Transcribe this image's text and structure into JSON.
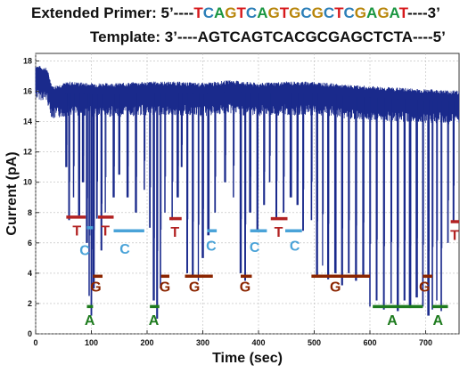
{
  "header": {
    "primer_label": "Extended Primer:",
    "primer_5": "5’----",
    "primer_3": "----3’",
    "primer_bases": [
      {
        "b": "T",
        "c": "#d7191c"
      },
      {
        "b": "C",
        "c": "#2c7fb8"
      },
      {
        "b": "A",
        "c": "#1a9641"
      },
      {
        "b": "G",
        "c": "#b8860b"
      },
      {
        "b": "T",
        "c": "#d7191c"
      },
      {
        "b": "C",
        "c": "#2c7fb8"
      },
      {
        "b": "A",
        "c": "#1a9641"
      },
      {
        "b": "G",
        "c": "#b8860b"
      },
      {
        "b": "T",
        "c": "#d7191c"
      },
      {
        "b": "G",
        "c": "#b8860b"
      },
      {
        "b": "C",
        "c": "#2c7fb8"
      },
      {
        "b": "G",
        "c": "#b8860b"
      },
      {
        "b": "C",
        "c": "#2c7fb8"
      },
      {
        "b": "T",
        "c": "#d7191c"
      },
      {
        "b": "C",
        "c": "#2c7fb8"
      },
      {
        "b": "G",
        "c": "#b8860b"
      },
      {
        "b": "A",
        "c": "#1a9641"
      },
      {
        "b": "G",
        "c": "#b8860b"
      },
      {
        "b": "A",
        "c": "#1a9641"
      },
      {
        "b": "T",
        "c": "#d7191c"
      }
    ],
    "template_text": "Template: 3’----AGTCAGTCACGCGAGCTCTA----5’"
  },
  "chart_data": {
    "type": "line",
    "xlabel": "Time (sec)",
    "ylabel": "Current (pA)",
    "xlim": [
      0,
      760
    ],
    "ylim": [
      0,
      18.5
    ],
    "xticks": [
      0,
      100,
      200,
      300,
      400,
      500,
      600,
      700
    ],
    "yticks": [
      0,
      2,
      4,
      6,
      8,
      10,
      12,
      14,
      16,
      18
    ],
    "grid": true,
    "trace_color": "#1a2a8c",
    "baseline": [
      [
        0,
        17.0
      ],
      [
        20,
        16.8
      ],
      [
        30,
        15.6
      ],
      [
        60,
        15.9
      ],
      [
        100,
        15.8
      ],
      [
        150,
        15.8
      ],
      [
        200,
        15.9
      ],
      [
        250,
        15.9
      ],
      [
        300,
        15.8
      ],
      [
        350,
        16.0
      ],
      [
        400,
        15.8
      ],
      [
        450,
        15.9
      ],
      [
        500,
        15.9
      ],
      [
        550,
        15.7
      ],
      [
        600,
        15.6
      ],
      [
        650,
        15.5
      ],
      [
        700,
        15.4
      ],
      [
        760,
        15.3
      ]
    ],
    "spikes": [
      {
        "x": 55,
        "y": 11
      },
      {
        "x": 60,
        "y": 7.5
      },
      {
        "x": 68,
        "y": 9
      },
      {
        "x": 78,
        "y": 7.8
      },
      {
        "x": 85,
        "y": 10
      },
      {
        "x": 92,
        "y": 6
      },
      {
        "x": 96,
        "y": 2.5
      },
      {
        "x": 100,
        "y": 1.2
      },
      {
        "x": 104,
        "y": 3
      },
      {
        "x": 110,
        "y": 7.6
      },
      {
        "x": 118,
        "y": 5.5
      },
      {
        "x": 125,
        "y": 8
      },
      {
        "x": 140,
        "y": 9
      },
      {
        "x": 150,
        "y": 10.5
      },
      {
        "x": 165,
        "y": 9
      },
      {
        "x": 180,
        "y": 8
      },
      {
        "x": 195,
        "y": 9.5
      },
      {
        "x": 205,
        "y": 7
      },
      {
        "x": 212,
        "y": 2.2
      },
      {
        "x": 218,
        "y": 1
      },
      {
        "x": 224,
        "y": 3
      },
      {
        "x": 232,
        "y": 8
      },
      {
        "x": 245,
        "y": 7.5
      },
      {
        "x": 255,
        "y": 9
      },
      {
        "x": 262,
        "y": 11
      },
      {
        "x": 272,
        "y": 4
      },
      {
        "x": 282,
        "y": 3.8
      },
      {
        "x": 292,
        "y": 3.5
      },
      {
        "x": 300,
        "y": 5
      },
      {
        "x": 310,
        "y": 6.5
      },
      {
        "x": 322,
        "y": 8
      },
      {
        "x": 340,
        "y": 10
      },
      {
        "x": 355,
        "y": 9
      },
      {
        "x": 368,
        "y": 4
      },
      {
        "x": 376,
        "y": 3.5
      },
      {
        "x": 385,
        "y": 8
      },
      {
        "x": 398,
        "y": 6.8
      },
      {
        "x": 410,
        "y": 8.5
      },
      {
        "x": 420,
        "y": 10
      },
      {
        "x": 432,
        "y": 7.6
      },
      {
        "x": 445,
        "y": 8
      },
      {
        "x": 458,
        "y": 9
      },
      {
        "x": 470,
        "y": 8.5
      },
      {
        "x": 480,
        "y": 6.8
      },
      {
        "x": 495,
        "y": 7.5
      },
      {
        "x": 505,
        "y": 3.8
      },
      {
        "x": 515,
        "y": 4.5
      },
      {
        "x": 525,
        "y": 3.6
      },
      {
        "x": 538,
        "y": 4
      },
      {
        "x": 550,
        "y": 3.2
      },
      {
        "x": 562,
        "y": 4
      },
      {
        "x": 575,
        "y": 3.5
      },
      {
        "x": 588,
        "y": 3.8
      },
      {
        "x": 600,
        "y": 1.8
      },
      {
        "x": 612,
        "y": 2.2
      },
      {
        "x": 625,
        "y": 1.6
      },
      {
        "x": 638,
        "y": 2
      },
      {
        "x": 650,
        "y": 1.5
      },
      {
        "x": 662,
        "y": 2.2
      },
      {
        "x": 672,
        "y": 1.7
      },
      {
        "x": 684,
        "y": 2.4
      },
      {
        "x": 695,
        "y": 1.8
      },
      {
        "x": 705,
        "y": 1.2
      },
      {
        "x": 712,
        "y": 1.6
      },
      {
        "x": 720,
        "y": 2.2
      },
      {
        "x": 728,
        "y": 1.5
      },
      {
        "x": 740,
        "y": 6
      },
      {
        "x": 750,
        "y": 7.4
      }
    ],
    "levels": [
      {
        "base": "T",
        "color": "#b22222",
        "x": [
          55,
          90
        ],
        "y": 7.7,
        "lx": 74,
        "ly": 6.5
      },
      {
        "base": "C",
        "color": "#4aa3d8",
        "x": [
          92,
          103
        ],
        "y": 7.0,
        "lx": 88,
        "ly": 5.2
      },
      {
        "base": "G",
        "color": "#8b2500",
        "x": [
          103,
          120
        ],
        "y": 3.8,
        "lx": 108,
        "ly": 2.8
      },
      {
        "base": "A",
        "color": "#1e7b1e",
        "x": [
          92,
          103
        ],
        "y": 1.8,
        "lx": 97,
        "ly": 0.6
      },
      {
        "base": "T",
        "color": "#b22222",
        "x": [
          112,
          140
        ],
        "y": 7.7,
        "lx": 125,
        "ly": 6.5
      },
      {
        "base": "C",
        "color": "#4aa3d8",
        "x": [
          140,
          195
        ],
        "y": 6.8,
        "lx": 160,
        "ly": 5.3
      },
      {
        "base": "A",
        "color": "#1e7b1e",
        "x": [
          205,
          222
        ],
        "y": 1.8,
        "lx": 212,
        "ly": 0.6
      },
      {
        "base": "G",
        "color": "#8b2500",
        "x": [
          225,
          240
        ],
        "y": 3.8,
        "lx": 232,
        "ly": 2.8
      },
      {
        "base": "T",
        "color": "#b22222",
        "x": [
          240,
          262
        ],
        "y": 7.6,
        "lx": 250,
        "ly": 6.4
      },
      {
        "base": "G",
        "color": "#8b2500",
        "x": [
          268,
          318
        ],
        "y": 3.8,
        "lx": 285,
        "ly": 2.8
      },
      {
        "base": "C",
        "color": "#4aa3d8",
        "x": [
          308,
          325
        ],
        "y": 6.8,
        "lx": 315,
        "ly": 5.5
      },
      {
        "base": "G",
        "color": "#8b2500",
        "x": [
          368,
          388
        ],
        "y": 3.8,
        "lx": 376,
        "ly": 2.8
      },
      {
        "base": "C",
        "color": "#4aa3d8",
        "x": [
          385,
          415
        ],
        "y": 6.8,
        "lx": 393,
        "ly": 5.4
      },
      {
        "base": "T",
        "color": "#b22222",
        "x": [
          422,
          452
        ],
        "y": 7.6,
        "lx": 436,
        "ly": 6.4
      },
      {
        "base": "C",
        "color": "#4aa3d8",
        "x": [
          448,
          478
        ],
        "y": 6.8,
        "lx": 465,
        "ly": 5.5
      },
      {
        "base": "G",
        "color": "#8b2500",
        "x": [
          495,
          600
        ],
        "y": 3.8,
        "lx": 538,
        "ly": 2.8
      },
      {
        "base": "A",
        "color": "#1e7b1e",
        "x": [
          605,
          695
        ],
        "y": 1.8,
        "lx": 640,
        "ly": 0.6
      },
      {
        "base": "G",
        "color": "#8b2500",
        "x": [
          695,
          712
        ],
        "y": 3.8,
        "lx": 698,
        "ly": 2.8
      },
      {
        "base": "A",
        "color": "#1e7b1e",
        "x": [
          712,
          740
        ],
        "y": 1.8,
        "lx": 722,
        "ly": 0.6
      },
      {
        "base": "T",
        "color": "#b22222",
        "x": [
          745,
          760
        ],
        "y": 7.4,
        "lx": 752,
        "ly": 6.2
      }
    ]
  }
}
